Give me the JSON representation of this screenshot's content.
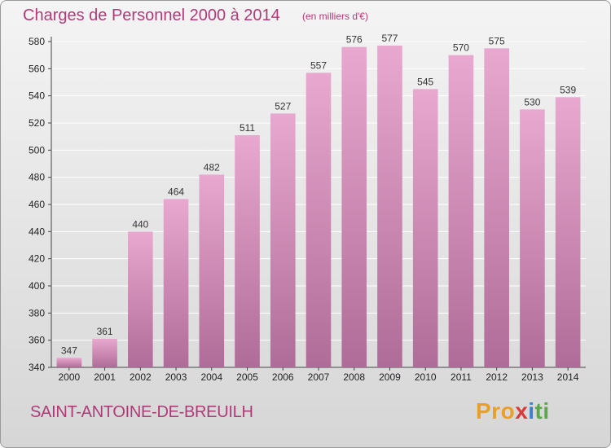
{
  "header": {
    "title": "Charges de Personnel 2000 à 2014",
    "subtitle": "(en milliers d'€)"
  },
  "footer": {
    "commune": "SAINT-ANTOINE-DE-BREUILH",
    "logo_parts": [
      "Pro",
      "x",
      "i",
      "ti"
    ]
  },
  "colors": {
    "bar_top": "#e8a8cf",
    "bar_bottom": "#b06c98",
    "title": "#b03a78"
  },
  "chart_data": {
    "type": "bar",
    "title": "Charges de Personnel 2000 à 2014",
    "subtitle": "(en milliers d'€)",
    "categories": [
      "2000",
      "2001",
      "2002",
      "2003",
      "2004",
      "2005",
      "2006",
      "2007",
      "2008",
      "2009",
      "2010",
      "2011",
      "2012",
      "2013",
      "2014"
    ],
    "values": [
      347,
      361,
      440,
      464,
      482,
      511,
      527,
      557,
      576,
      577,
      545,
      570,
      575,
      530,
      539
    ],
    "ylim": [
      340,
      580
    ],
    "yticks": [
      340,
      360,
      380,
      400,
      420,
      440,
      460,
      480,
      500,
      520,
      540,
      560,
      580
    ],
    "grid": true,
    "xlabel": "",
    "ylabel": ""
  }
}
